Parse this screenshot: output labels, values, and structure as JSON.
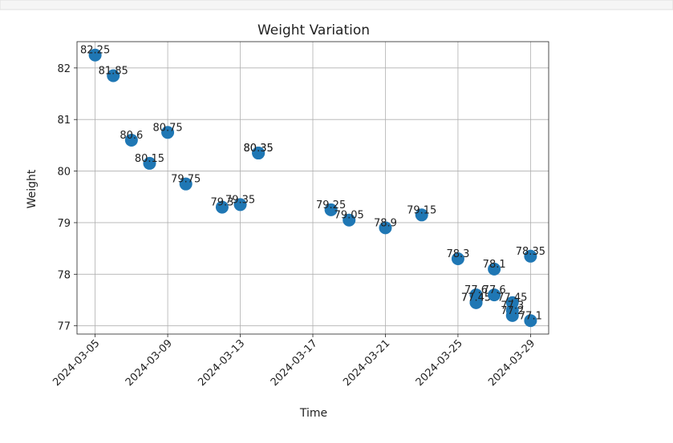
{
  "chart_data": {
    "type": "scatter",
    "title": "Weight Variation",
    "x_label": "Time",
    "y_label": "Weight",
    "x": [
      "2024-03-05",
      "2024-03-06",
      "2024-03-07",
      "2024-03-08",
      "2024-03-09",
      "2024-03-10",
      "2024-03-12",
      "2024-03-13",
      "2024-03-14",
      "2024-03-14",
      "2024-03-18",
      "2024-03-19",
      "2024-03-21",
      "2024-03-23",
      "2024-03-25",
      "2024-03-26",
      "2024-03-26",
      "2024-03-26",
      "2024-03-27",
      "2024-03-27",
      "2024-03-28",
      "2024-03-28",
      "2024-03-28",
      "2024-03-29",
      "2024-03-29"
    ],
    "values": [
      82.25,
      81.85,
      80.6,
      80.15,
      80.75,
      79.75,
      79.3,
      79.35,
      80.35,
      80.35,
      79.25,
      79.05,
      78.9,
      79.15,
      78.3,
      77.6,
      77.45,
      77.45,
      78.1,
      77.6,
      77.45,
      77.3,
      77.2,
      78.35,
      77.1
    ],
    "color": "#1f77b4",
    "xlim": [
      "2024-03-04",
      "2024-03-30"
    ],
    "xticks": [
      "2024-03-05",
      "2024-03-09",
      "2024-03-13",
      "2024-03-17",
      "2024-03-21",
      "2024-03-25",
      "2024-03-29"
    ],
    "ylim": [
      76.84,
      82.51
    ],
    "yticks": [
      77,
      78,
      79,
      80,
      81,
      82
    ],
    "grid": true
  }
}
